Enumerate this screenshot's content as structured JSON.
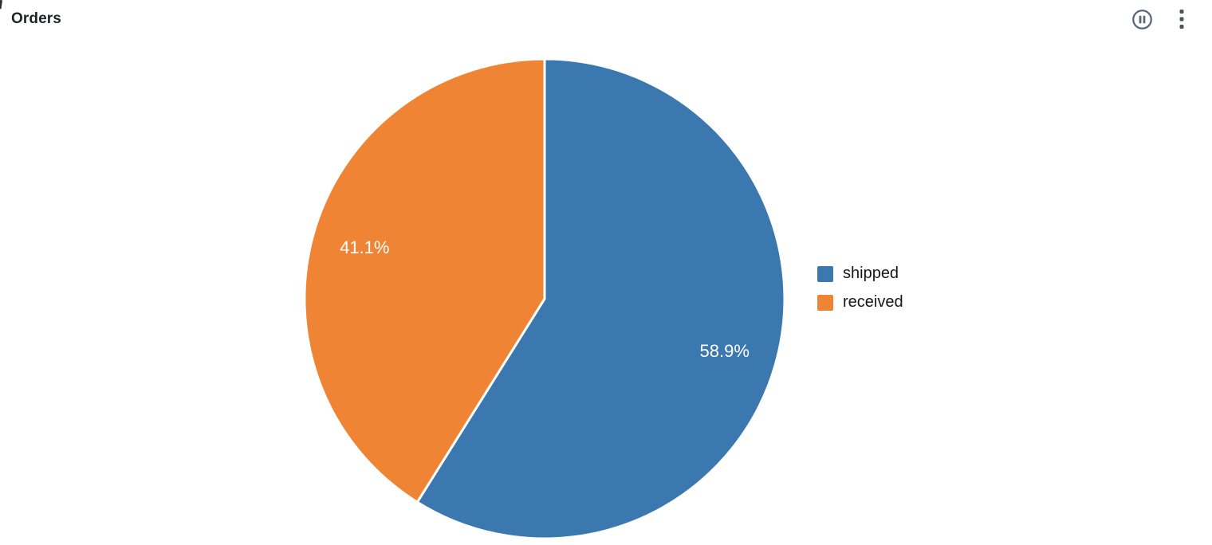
{
  "header": {
    "title": "Orders",
    "pause_icon": "pause-circle",
    "menu_icon": "vertical-kebab"
  },
  "chart_data": {
    "type": "pie",
    "title": "Orders",
    "labels": [
      "shipped",
      "received"
    ],
    "values": [
      58.9,
      41.1
    ],
    "unit": "percent",
    "slice_labels": [
      "58.9%",
      "41.1%"
    ],
    "colors": [
      "#3B78B0",
      "#EF8434"
    ],
    "slice_label_color": "#FFFFFF",
    "start_angle_deg": 0,
    "direction": "clockwise",
    "legend_position": "right",
    "grid": false
  },
  "colors": {
    "icon": "#5B6670",
    "title_text": "#1F2328",
    "legend_text": "#181818",
    "background": "#FFFFFF",
    "slice_separator": "#FFFFFF"
  }
}
